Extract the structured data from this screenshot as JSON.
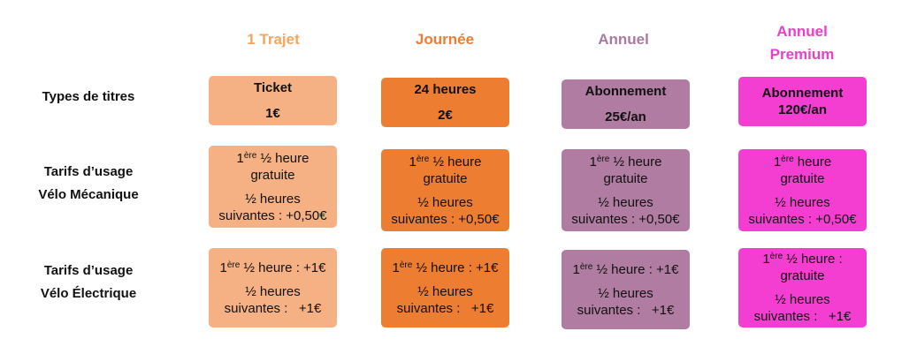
{
  "columns": [
    [
      "1 Trajet"
    ],
    [
      "Journée"
    ],
    [
      "Annuel"
    ],
    [
      "Annuel",
      "Premium"
    ]
  ],
  "rows": [
    {
      "label": [
        "Types de titres"
      ],
      "cells": [
        [
          [
            "Ticket"
          ],
          [
            "1€"
          ]
        ],
        [
          [
            "24 heures"
          ],
          [
            "2€"
          ]
        ],
        [
          [
            "Abonnement"
          ],
          [
            "25€/an"
          ]
        ],
        [
          [
            "Abonnement",
            "120€/an"
          ]
        ]
      ]
    },
    {
      "label": [
        "Tarifs d’usage",
        "Vélo Mécanique"
      ],
      "cells": [
        [
          [
            {
              "base": "1",
              "sup": "ère",
              "rest": " ½ heure"
            },
            "gratuite"
          ],
          [
            "½ heures",
            "suivantes : +0,50€"
          ]
        ],
        [
          [
            {
              "base": "1",
              "sup": "ère",
              "rest": " ½ heure"
            },
            "gratuite"
          ],
          [
            "½ heures",
            "suivantes : +0,50€"
          ]
        ],
        [
          [
            {
              "base": "1",
              "sup": "ère",
              "rest": " ½ heure"
            },
            "gratuite"
          ],
          [
            "½ heures",
            "suivantes : +0,50€"
          ]
        ],
        [
          [
            {
              "base": "1",
              "sup": "ère",
              "rest": " heure"
            },
            "gratuite"
          ],
          [
            "½ heures",
            "suivantes : +0,50€"
          ]
        ]
      ]
    },
    {
      "label": [
        "Tarifs d’usage",
        "Vélo Électrique"
      ],
      "cells": [
        [
          [
            {
              "base": "1",
              "sup": "ère",
              "rest": " ½ heure : +1€"
            }
          ],
          [
            "½ heures",
            "suivantes :   +1€"
          ]
        ],
        [
          [
            {
              "base": "1",
              "sup": "ère",
              "rest": " ½ heure : +1€"
            }
          ],
          [
            "½ heures",
            "suivantes :   +1€"
          ]
        ],
        [
          [
            {
              "base": "1",
              "sup": "ère",
              "rest": " ½ heure : +1€"
            }
          ],
          [
            "½ heures",
            "suivantes :   +1€"
          ]
        ],
        [
          [
            {
              "base": "1",
              "sup": "ère",
              "rest": " ½ heure :"
            },
            "gratuite"
          ],
          [
            "½ heures",
            "suivantes :   +1€"
          ]
        ]
      ]
    }
  ]
}
